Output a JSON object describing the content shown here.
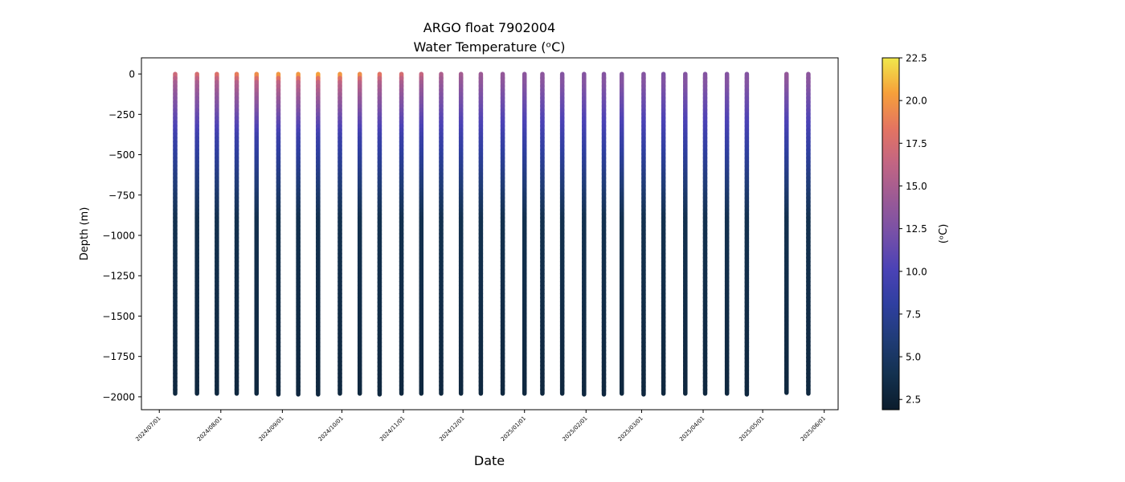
{
  "chart_data": {
    "type": "scatter",
    "title": "ARGO float 7902004",
    "subtitle": "Water Temperature (ᵒC)",
    "xlabel": "Date",
    "ylabel": "Depth (m)",
    "colorbar_label": "(ᵒC)",
    "x_range": [
      "2024-06-22",
      "2025-06-08"
    ],
    "ylim": [
      -2080,
      100
    ],
    "yticks": [
      0,
      -250,
      -500,
      -750,
      -1000,
      -1250,
      -1500,
      -1750,
      -2000
    ],
    "ytick_labels": [
      "0",
      "−250",
      "−500",
      "−750",
      "−1000",
      "−1250",
      "−1500",
      "−1750",
      "−2000"
    ],
    "xticks": [
      "2024-07-01",
      "2024-08-01",
      "2024-09-01",
      "2024-10-01",
      "2024-11-01",
      "2024-12-01",
      "2025-01-01",
      "2025-02-01",
      "2025-03-01",
      "2025-04-01",
      "2025-05-01",
      "2025-06-01"
    ],
    "xtick_labels": [
      "2024/07/01",
      "2024/08/01",
      "2024/09/01",
      "2024/10/01",
      "2024/11/01",
      "2024/12/01",
      "2025/01/01",
      "2025/02/01",
      "2025/03/01",
      "2025/04/01",
      "2025/05/01",
      "2025/06/01"
    ],
    "colorbar_range": [
      1.9,
      22.5
    ],
    "colorbar_ticks": [
      2.5,
      5.0,
      7.5,
      10.0,
      12.5,
      15.0,
      17.5,
      20.0,
      22.5
    ],
    "colorbar_tick_labels": [
      "2.5",
      "5.0",
      "7.5",
      "10.0",
      "12.5",
      "15.0",
      "17.5",
      "20.0",
      "22.5"
    ],
    "colormap": [
      "#0b1c2c",
      "#13314f",
      "#203c77",
      "#2f3fa0",
      "#4b42b6",
      "#7650a8",
      "#9b5a95",
      "#c26583",
      "#e47461",
      "#f6a03a",
      "#f0e84c"
    ],
    "profiles": [
      {
        "date": "2024-07-09",
        "surface_temp": 17.5,
        "max_depth": 1980
      },
      {
        "date": "2024-07-20",
        "surface_temp": 18.0,
        "max_depth": 1980
      },
      {
        "date": "2024-07-30",
        "surface_temp": 18.5,
        "max_depth": 1980
      },
      {
        "date": "2024-08-09",
        "surface_temp": 19.5,
        "max_depth": 1980
      },
      {
        "date": "2024-08-19",
        "surface_temp": 20.5,
        "max_depth": 1980
      },
      {
        "date": "2024-08-30",
        "surface_temp": 21.0,
        "max_depth": 1985
      },
      {
        "date": "2024-09-09",
        "surface_temp": 21.0,
        "max_depth": 1985
      },
      {
        "date": "2024-09-19",
        "surface_temp": 21.5,
        "max_depth": 1985
      },
      {
        "date": "2024-09-30",
        "surface_temp": 21.0,
        "max_depth": 1980
      },
      {
        "date": "2024-10-10",
        "surface_temp": 20.5,
        "max_depth": 1980
      },
      {
        "date": "2024-10-20",
        "surface_temp": 19.0,
        "max_depth": 1985
      },
      {
        "date": "2024-10-31",
        "surface_temp": 18.0,
        "max_depth": 1980
      },
      {
        "date": "2024-11-10",
        "surface_temp": 17.0,
        "max_depth": 1980
      },
      {
        "date": "2024-11-20",
        "surface_temp": 15.5,
        "max_depth": 1980
      },
      {
        "date": "2024-11-30",
        "surface_temp": 15.0,
        "max_depth": 1980
      },
      {
        "date": "2024-12-10",
        "surface_temp": 14.5,
        "max_depth": 1980
      },
      {
        "date": "2024-12-21",
        "surface_temp": 14.0,
        "max_depth": 1980
      },
      {
        "date": "2025-01-01",
        "surface_temp": 13.5,
        "max_depth": 1980
      },
      {
        "date": "2025-01-10",
        "surface_temp": 13.5,
        "max_depth": 1980
      },
      {
        "date": "2025-01-20",
        "surface_temp": 13.0,
        "max_depth": 1980
      },
      {
        "date": "2025-01-31",
        "surface_temp": 13.0,
        "max_depth": 1985
      },
      {
        "date": "2025-02-10",
        "surface_temp": 13.0,
        "max_depth": 1985
      },
      {
        "date": "2025-02-19",
        "surface_temp": 13.0,
        "max_depth": 1980
      },
      {
        "date": "2025-03-02",
        "surface_temp": 13.0,
        "max_depth": 1985
      },
      {
        "date": "2025-03-12",
        "surface_temp": 12.5,
        "max_depth": 1980
      },
      {
        "date": "2025-03-23",
        "surface_temp": 13.0,
        "max_depth": 1980
      },
      {
        "date": "2025-04-02",
        "surface_temp": 13.0,
        "max_depth": 1980
      },
      {
        "date": "2025-04-13",
        "surface_temp": 13.0,
        "max_depth": 1980
      },
      {
        "date": "2025-04-23",
        "surface_temp": 13.0,
        "max_depth": 1985
      },
      {
        "date": "2025-05-13",
        "surface_temp": 14.0,
        "max_depth": 1975
      },
      {
        "date": "2025-05-24",
        "surface_temp": 13.5,
        "max_depth": 1980
      }
    ]
  }
}
